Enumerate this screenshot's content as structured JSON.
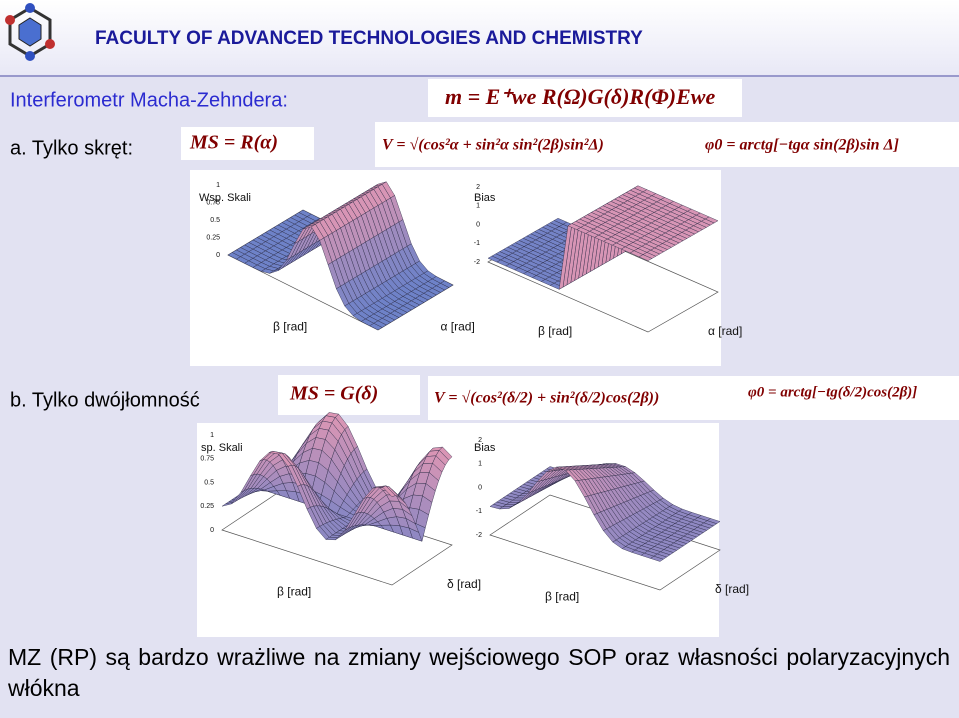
{
  "header": {
    "title": "FACULTY OF ADVANCED TECHNOLOGIES AND CHEMISTRY"
  },
  "subtitle": "Interferometr Macha-Zehndera:",
  "main_formula": "m = E⁺we R(Ω)G(δ)R(Φ)Ewe",
  "section_a": {
    "label": "a. Tylko skręt:",
    "formula": "MS = R(α)",
    "visibility": "V = √(cos²α + sin²α sin²(2β)sin²Δ)",
    "phase": "φ0 = arctg[−tgα sin(2β)sin Δ]",
    "plots": [
      {
        "title": "Wsp. Skali",
        "x_label": "α [rad]",
        "y_label": "β [rad]",
        "zticks": [
          "1",
          "0.75",
          "0.5",
          "0.25",
          "0"
        ]
      },
      {
        "title": "Bias",
        "x_label": "α [rad]",
        "y_label": "β [rad]",
        "zticks": [
          "2",
          "1",
          "0",
          "-1",
          "-2"
        ]
      }
    ]
  },
  "section_b": {
    "label": "b. Tylko dwójłomność",
    "formula": "MS = G(δ)",
    "visibility": "V = √(cos²(δ/2) + sin²(δ/2)cos(2β))",
    "phase": "φ0 = arctg[−tg(δ/2)cos(2β)]",
    "plots": [
      {
        "title": "sp. Skali",
        "x_label": "δ [rad]",
        "y_label": "β [rad]",
        "zticks": [
          "1",
          "0.75",
          "0.5",
          "0.25",
          "0"
        ]
      },
      {
        "title": "Bias",
        "x_label": "δ [rad]",
        "y_label": "β [rad]",
        "zticks": [
          "2",
          "1",
          "0",
          "-1",
          "-2"
        ]
      }
    ]
  },
  "conclusion": "MZ (RP) są bardzo wrażliwe na zmiany wejściowego SOP oraz własności polaryzacyjnych włókna"
}
